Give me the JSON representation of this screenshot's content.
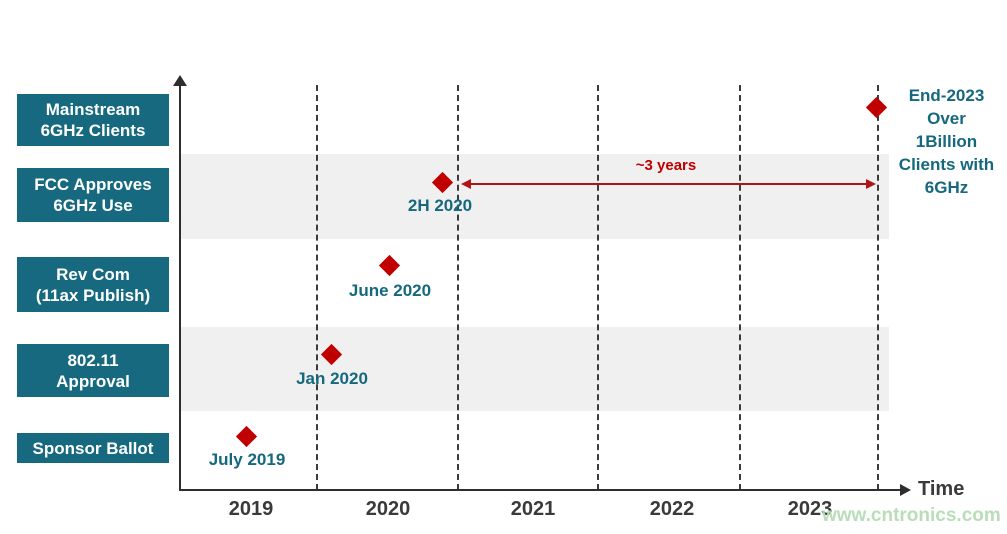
{
  "chart_data": {
    "type": "scatter",
    "subtype": "milestone-timeline",
    "xlabel": "Time",
    "x_ticks": [
      "2019",
      "2020",
      "2021",
      "2022",
      "2023"
    ],
    "x_range": [
      2018.5,
      2024.2
    ],
    "grid": "dashed vertical lines at year boundaries",
    "marker": {
      "shape": "diamond",
      "color": "#c00000"
    },
    "rows": [
      "Mainstream 6GHz Clients",
      "FCC Approves 6GHz Use",
      "Rev Com (11ax Publish)",
      "802.11 Approval",
      "Sponsor Ballot"
    ],
    "milestones": [
      {
        "row": "Sponsor Ballot",
        "label": "July 2019",
        "x": 2019.5
      },
      {
        "row": "802.11 Approval",
        "label": "Jan 2020",
        "x": 2020.1
      },
      {
        "row": "Rev Com (11ax Publish)",
        "label": "June 2020",
        "x": 2020.5
      },
      {
        "row": "FCC Approves 6GHz Use",
        "label": "2H 2020",
        "x": 2020.9
      },
      {
        "row": "Mainstream 6GHz Clients",
        "label": "End-2023",
        "x": 2024.0
      }
    ],
    "shaded_bands_rows": [
      "FCC Approves 6GHz Use",
      "802.11 Approval"
    ],
    "annotations": [
      {
        "type": "double-arrow",
        "text": "~3 years",
        "from_x": 2020.95,
        "to_x": 2023.95
      },
      {
        "type": "note",
        "text": "End-2023 Over 1Billion Clients with 6GHz"
      }
    ]
  },
  "axis": {
    "time_label": "Time",
    "years": [
      "2019",
      "2020",
      "2021",
      "2022",
      "2023"
    ]
  },
  "rows": [
    {
      "lines": [
        "Mainstream",
        "6GHz Clients"
      ]
    },
    {
      "lines": [
        "FCC Approves",
        "6GHz Use"
      ]
    },
    {
      "lines": [
        "Rev Com",
        "(11ax Publish)"
      ]
    },
    {
      "lines": [
        "802.11",
        "Approval"
      ]
    },
    {
      "lines": [
        "Sponsor Ballot"
      ]
    }
  ],
  "annotations": {
    "arrow_label": "~3 years",
    "end_note_lines": [
      "End-2023",
      "Over",
      "1Billion",
      "Clients with",
      "6GHz"
    ]
  },
  "watermark": {
    "text": "www.cntronics.com"
  },
  "colors": {
    "teal": "#16697e",
    "red_marker": "#c00000",
    "red_arrow": "#ae1515",
    "band_gray": "#f0f0f0",
    "axis_dark": "#2e2e2e",
    "watermark_green": "#b5dcb5"
  }
}
